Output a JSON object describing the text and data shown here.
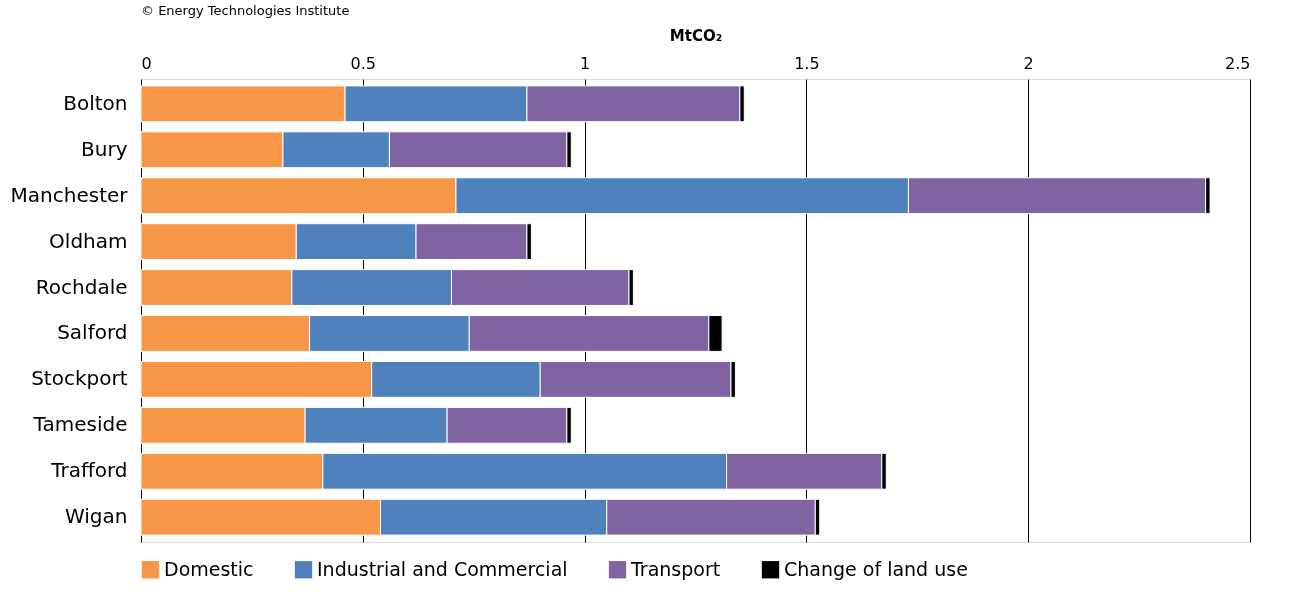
{
  "chart_data": {
    "type": "bar",
    "orientation": "horizontal",
    "stacked": true,
    "annotations": [
      "© Energy Technologies Institute"
    ],
    "xlabel": "MtCO₂",
    "categories": [
      "Bolton",
      "Bury",
      "Manchester",
      "Oldham",
      "Rochdale",
      "Salford",
      "Stockport",
      "Tameside",
      "Trafford",
      "Wigan"
    ],
    "series": [
      {
        "name": "Domestic",
        "color": "#f79646",
        "values": [
          0.46,
          0.32,
          0.71,
          0.35,
          0.34,
          0.38,
          0.52,
          0.37,
          0.41,
          0.54
        ]
      },
      {
        "name": "Industrial and Commercial",
        "color": "#4f81bd",
        "values": [
          0.41,
          0.24,
          1.02,
          0.27,
          0.36,
          0.36,
          0.38,
          0.32,
          0.91,
          0.51
        ]
      },
      {
        "name": "Transport",
        "color": "#8064a2",
        "values": [
          0.48,
          0.4,
          0.67,
          0.25,
          0.4,
          0.54,
          0.43,
          0.27,
          0.35,
          0.47
        ]
      },
      {
        "name": "Change of land use",
        "color": "#000000",
        "values": [
          0.01,
          0.01,
          0.01,
          0.01,
          0.01,
          0.03,
          0.01,
          0.01,
          0.01,
          0.01
        ]
      }
    ],
    "xlim": [
      0,
      2.5
    ],
    "xticks": [
      0,
      0.5,
      1,
      1.5,
      2,
      2.5
    ],
    "grid": "x",
    "legend": "bottom"
  }
}
